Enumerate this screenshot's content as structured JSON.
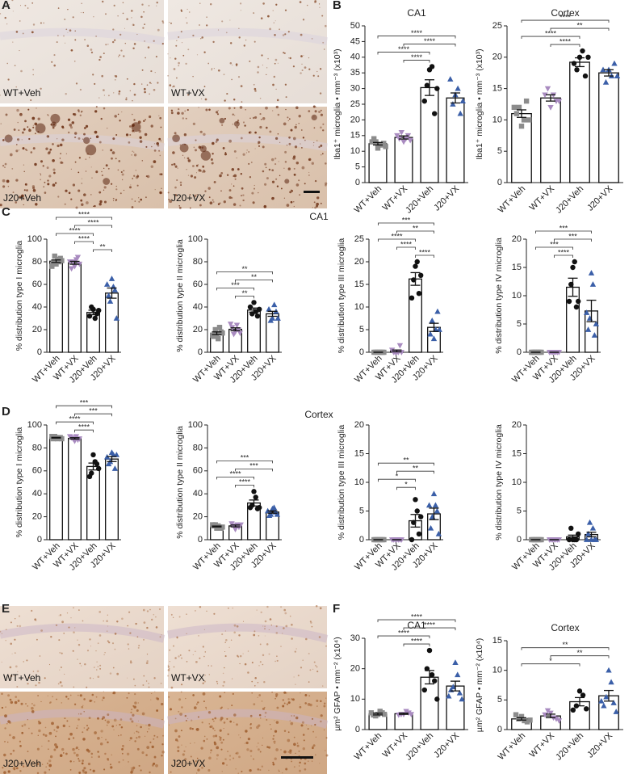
{
  "panel_labels": [
    "A",
    "B",
    "C",
    "D",
    "E",
    "F"
  ],
  "section_titles": [
    "CA1",
    "Cortex"
  ],
  "micrograph_sets": [
    {
      "labels": [
        "WT+Veh",
        "WT+VX",
        "J20+Veh",
        "J20+VX"
      ]
    },
    {
      "labels": [
        "WT+Veh",
        "WT+VX",
        "J20+Veh",
        "J20+VX"
      ]
    }
  ],
  "chart_data": [
    {
      "type": "bar",
      "title": "CA1",
      "y_label": "Iba1⁺ microglia • mm⁻³ (x10³)",
      "categories": [
        "WT+Veh",
        "WT+VX",
        "J20+Veh",
        "J20+VX"
      ],
      "values": [
        12.4,
        14.4,
        30.3,
        27.0
      ],
      "errors": [
        0.4,
        0.5,
        2.5,
        1.6
      ],
      "points": [
        [
          11,
          12,
          13,
          12,
          14,
          12.5,
          13,
          11.5
        ],
        [
          13,
          14,
          16,
          15,
          14,
          13.5,
          15
        ],
        [
          36,
          37,
          31,
          22,
          26,
          30
        ],
        [
          28,
          30,
          25,
          22,
          33,
          26
        ]
      ],
      "colors": [
        "#8c8c8c",
        "#a98bc0",
        "#111111",
        "#3b5fa8"
      ],
      "markers": [
        "square",
        "triangle-down",
        "circle",
        "triangle"
      ],
      "ylim": [
        0,
        50
      ],
      "yticks": [
        0,
        5,
        10,
        15,
        20,
        25,
        30,
        35,
        40,
        45,
        50
      ],
      "comparisons": [
        {
          "pair": [
            0,
            3
          ],
          "label": "****"
        },
        {
          "pair": [
            1,
            3
          ],
          "label": "****"
        },
        {
          "pair": [
            0,
            2
          ],
          "label": "****"
        },
        {
          "pair": [
            1,
            2
          ],
          "label": "****"
        }
      ]
    },
    {
      "type": "bar",
      "title": "Cortex",
      "y_label": "Iba1⁺ microglia • mm⁻³ (x10³)",
      "categories": [
        "WT+Veh",
        "WT+VX",
        "J20+Veh",
        "J20+VX"
      ],
      "values": [
        11.0,
        13.5,
        19.2,
        17.5
      ],
      "errors": [
        0.6,
        0.5,
        0.7,
        0.5
      ],
      "points": [
        [
          9,
          10,
          12,
          13,
          11,
          10,
          12
        ],
        [
          12,
          14,
          15,
          13,
          14,
          13
        ],
        [
          20,
          21,
          18,
          17,
          19,
          20
        ],
        [
          18,
          17,
          16,
          19,
          18,
          17
        ]
      ],
      "colors": [
        "#8c8c8c",
        "#a98bc0",
        "#111111",
        "#3b5fa8"
      ],
      "markers": [
        "square",
        "triangle-down",
        "circle",
        "triangle"
      ],
      "ylim": [
        0,
        25
      ],
      "yticks": [
        0,
        5,
        10,
        15,
        20,
        25
      ],
      "comparisons": [
        {
          "pair": [
            0,
            3
          ],
          "label": "****"
        },
        {
          "pair": [
            1,
            3
          ],
          "label": "**"
        },
        {
          "pair": [
            0,
            2
          ],
          "label": "****"
        },
        {
          "pair": [
            1,
            2
          ],
          "label": "****"
        }
      ]
    },
    {
      "type": "bar",
      "y_label": "% distribution type I microglia",
      "categories": [
        "WT+Veh",
        "WT+VX",
        "J20+Veh",
        "J20+VX"
      ],
      "values": [
        80.5,
        79.1,
        35.2,
        52.3
      ],
      "errors": [
        1.1,
        1.3,
        2.0,
        4.5
      ],
      "points": [
        [
          78,
          82,
          85,
          80,
          79,
          83,
          76,
          81
        ],
        [
          76,
          82,
          80,
          84,
          74,
          78,
          80
        ],
        [
          38,
          30,
          40,
          34,
          32,
          37
        ],
        [
          65,
          58,
          45,
          55,
          50,
          30,
          60
        ]
      ],
      "colors": [
        "#8c8c8c",
        "#a98bc0",
        "#111111",
        "#3b5fa8"
      ],
      "markers": [
        "square",
        "triangle-down",
        "circle",
        "triangle"
      ],
      "ylim": [
        0,
        100
      ],
      "yticks": [
        0,
        20,
        40,
        60,
        80,
        100
      ],
      "comparisons": [
        {
          "pair": [
            0,
            3
          ],
          "label": "****"
        },
        {
          "pair": [
            1,
            3
          ],
          "label": "****"
        },
        {
          "pair": [
            0,
            2
          ],
          "label": "****"
        },
        {
          "pair": [
            1,
            2
          ],
          "label": "****"
        },
        {
          "pair": [
            2,
            3
          ],
          "label": "**"
        }
      ]
    },
    {
      "type": "bar",
      "y_label": "% distribution type II microglia",
      "categories": [
        "WT+Veh",
        "WT+VX",
        "J20+Veh",
        "J20+VX"
      ],
      "values": [
        16.8,
        20.3,
        37.3,
        34.0
      ],
      "errors": [
        1.2,
        1.3,
        1.8,
        2.2
      ],
      "points": [
        [
          16,
          12,
          20,
          22,
          14,
          18,
          15,
          17
        ],
        [
          18,
          24,
          16,
          20,
          22,
          17,
          25
        ],
        [
          44,
          36,
          34,
          32,
          40,
          38
        ],
        [
          30,
          42,
          28,
          36,
          38,
          30
        ]
      ],
      "colors": [
        "#8c8c8c",
        "#a98bc0",
        "#111111",
        "#3b5fa8"
      ],
      "markers": [
        "square",
        "triangle-down",
        "circle",
        "triangle"
      ],
      "ylim": [
        0,
        100
      ],
      "yticks": [
        0,
        20,
        40,
        60,
        80,
        100
      ],
      "comparisons": [
        {
          "pair": [
            0,
            3
          ],
          "label": "**"
        },
        {
          "pair": [
            1,
            3
          ],
          "label": "**"
        },
        {
          "pair": [
            0,
            2
          ],
          "label": "***"
        },
        {
          "pair": [
            1,
            2
          ],
          "label": "**"
        }
      ]
    },
    {
      "type": "bar",
      "y_label": "% distribution type III microglia",
      "categories": [
        "WT+Veh",
        "WT+VX",
        "J20+Veh",
        "J20+VX"
      ],
      "values": [
        0,
        0.3,
        16.2,
        5.5
      ],
      "errors": [
        0,
        0.2,
        1.4,
        0.9
      ],
      "points": [
        [
          0,
          0,
          0,
          0,
          0,
          0,
          0,
          0
        ],
        [
          0,
          0,
          0,
          1.5,
          0,
          0,
          0.5
        ],
        [
          19,
          20,
          16,
          13,
          12,
          17
        ],
        [
          3,
          5,
          7,
          9,
          4,
          5
        ]
      ],
      "colors": [
        "#8c8c8c",
        "#a98bc0",
        "#111111",
        "#3b5fa8"
      ],
      "markers": [
        "square",
        "triangle-down",
        "circle",
        "triangle"
      ],
      "ylim": [
        0,
        25
      ],
      "yticks": [
        0,
        5,
        10,
        15,
        20,
        25
      ],
      "comparisons": [
        {
          "pair": [
            0,
            3
          ],
          "label": "***"
        },
        {
          "pair": [
            1,
            3
          ],
          "label": "**"
        },
        {
          "pair": [
            0,
            2
          ],
          "label": "****"
        },
        {
          "pair": [
            1,
            2
          ],
          "label": "****"
        },
        {
          "pair": [
            2,
            3
          ],
          "label": "****"
        }
      ]
    },
    {
      "type": "bar",
      "y_label": "% distribution type IV microglia",
      "categories": [
        "WT+Veh",
        "WT+VX",
        "J20+Veh",
        "J20+VX"
      ],
      "values": [
        0,
        0,
        11.5,
        7.3
      ],
      "errors": [
        0,
        0,
        1.6,
        1.9
      ],
      "points": [
        [
          0,
          0,
          0,
          0,
          0,
          0,
          0,
          0
        ],
        [
          0,
          0,
          0,
          0,
          0,
          0,
          0
        ],
        [
          15,
          16,
          12,
          8,
          9,
          9
        ],
        [
          14,
          12,
          6,
          3,
          4,
          5,
          7
        ]
      ],
      "colors": [
        "#8c8c8c",
        "#a98bc0",
        "#111111",
        "#3b5fa8"
      ],
      "markers": [
        "square",
        "triangle-down",
        "circle",
        "triangle"
      ],
      "ylim": [
        0,
        20
      ],
      "yticks": [
        0,
        5,
        10,
        15,
        20
      ],
      "comparisons": [
        {
          "pair": [
            0,
            3
          ],
          "label": "***"
        },
        {
          "pair": [
            1,
            3
          ],
          "label": "***"
        },
        {
          "pair": [
            0,
            2
          ],
          "label": "***"
        },
        {
          "pair": [
            1,
            2
          ],
          "label": "****"
        }
      ]
    },
    {
      "type": "bar",
      "y_label": "% distribution type I microglia",
      "categories": [
        "WT+Veh",
        "WT+VX",
        "J20+Veh",
        "J20+VX"
      ],
      "values": [
        88.9,
        88.3,
        63.8,
        70.3
      ],
      "errors": [
        0.3,
        0.6,
        3.0,
        2.2
      ],
      "points": [
        [
          89,
          88,
          90,
          89,
          88,
          89,
          90,
          88
        ],
        [
          86,
          90,
          88,
          87,
          89,
          88,
          90
        ],
        [
          74,
          68,
          58,
          66,
          55,
          62
        ],
        [
          76,
          74,
          68,
          62,
          66,
          74,
          72
        ]
      ],
      "colors": [
        "#8c8c8c",
        "#a98bc0",
        "#111111",
        "#3b5fa8"
      ],
      "markers": [
        "square",
        "triangle-down",
        "circle",
        "triangle"
      ],
      "ylim": [
        0,
        100
      ],
      "yticks": [
        0,
        20,
        40,
        60,
        80,
        100
      ],
      "comparisons": [
        {
          "pair": [
            0,
            3
          ],
          "label": "***"
        },
        {
          "pair": [
            1,
            3
          ],
          "label": "***"
        },
        {
          "pair": [
            0,
            2
          ],
          "label": "****"
        },
        {
          "pair": [
            1,
            2
          ],
          "label": "****"
        }
      ]
    },
    {
      "type": "bar",
      "y_label": "% distribution type II microglia",
      "categories": [
        "WT+Veh",
        "WT+VX",
        "J20+Veh",
        "J20+VX"
      ],
      "values": [
        11.5,
        12.0,
        32.0,
        24.1
      ],
      "errors": [
        0.4,
        0.8,
        2.6,
        1.0
      ],
      "points": [
        [
          10,
          12,
          13,
          11,
          12,
          10,
          13,
          11
        ],
        [
          9,
          13,
          12,
          11,
          14,
          13
        ],
        [
          42,
          37,
          30,
          27,
          28,
          28
        ],
        [
          27,
          28,
          22,
          24,
          21,
          22,
          25
        ]
      ],
      "colors": [
        "#8c8c8c",
        "#a98bc0",
        "#111111",
        "#3b5fa8"
      ],
      "markers": [
        "square",
        "triangle-down",
        "circle",
        "triangle"
      ],
      "ylim": [
        0,
        100
      ],
      "yticks": [
        0,
        20,
        40,
        60,
        80,
        100
      ],
      "comparisons": [
        {
          "pair": [
            0,
            3
          ],
          "label": "***"
        },
        {
          "pair": [
            1,
            3
          ],
          "label": "***"
        },
        {
          "pair": [
            0,
            2
          ],
          "label": "****"
        },
        {
          "pair": [
            1,
            2
          ],
          "label": "****"
        }
      ]
    },
    {
      "type": "bar",
      "y_label": "% distribution type III microglia",
      "categories": [
        "WT+Veh",
        "WT+VX",
        "J20+Veh",
        "J20+VX"
      ],
      "values": [
        0,
        0,
        3.3,
        4.5
      ],
      "errors": [
        0,
        0,
        1.1,
        1.0
      ],
      "points": [
        [
          0,
          0,
          0,
          0,
          0,
          0,
          0,
          0
        ],
        [
          0,
          0,
          0,
          0,
          0,
          0,
          0
        ],
        [
          7,
          5,
          3,
          1,
          0,
          4
        ],
        [
          8,
          6,
          4,
          5,
          2,
          1,
          6
        ]
      ],
      "colors": [
        "#8c8c8c",
        "#a98bc0",
        "#111111",
        "#3b5fa8"
      ],
      "markers": [
        "square",
        "triangle-down",
        "circle",
        "triangle"
      ],
      "ylim": [
        0,
        20
      ],
      "yticks": [
        0,
        5,
        10,
        15,
        20
      ],
      "comparisons": [
        {
          "pair": [
            0,
            3
          ],
          "label": "**"
        },
        {
          "pair": [
            1,
            3
          ],
          "label": "**"
        },
        {
          "pair": [
            0,
            2
          ],
          "label": "*"
        },
        {
          "pair": [
            1,
            2
          ],
          "label": "*"
        }
      ]
    },
    {
      "type": "bar",
      "y_label": "% distribution type IV microglia",
      "categories": [
        "WT+Veh",
        "WT+VX",
        "J20+Veh",
        "J20+VX"
      ],
      "values": [
        0,
        0,
        0.5,
        0.9
      ],
      "errors": [
        0,
        0,
        0.3,
        0.4
      ],
      "points": [
        [
          0,
          0,
          0,
          0,
          0,
          0,
          0,
          0
        ],
        [
          0,
          0,
          0,
          0,
          0,
          0,
          0
        ],
        [
          0,
          0,
          2,
          0,
          0,
          1
        ],
        [
          0,
          2,
          3,
          0,
          1,
          0,
          0
        ]
      ],
      "colors": [
        "#8c8c8c",
        "#a98bc0",
        "#111111",
        "#3b5fa8"
      ],
      "markers": [
        "square",
        "triangle-down",
        "circle",
        "triangle"
      ],
      "ylim": [
        0,
        20
      ],
      "yticks": [
        0,
        5,
        10,
        15,
        20
      ],
      "comparisons": []
    },
    {
      "type": "bar",
      "title": "CA1",
      "y_label": "µm² GFAP • mm⁻² (x10⁴)",
      "categories": [
        "WT+Veh",
        "WT+VX",
        "J20+Veh",
        "J20+VX"
      ],
      "values": [
        5.1,
        5.2,
        17.2,
        14.3
      ],
      "errors": [
        0.3,
        0.2,
        2.2,
        1.6
      ],
      "points": [
        [
          5,
          6,
          4.5,
          5.5,
          4.8,
          5,
          5.5
        ],
        [
          5,
          6,
          5,
          5.5,
          4.8,
          5
        ],
        [
          26,
          18,
          20,
          16,
          13,
          10
        ],
        [
          22,
          18,
          14,
          12,
          13,
          10,
          11
        ]
      ],
      "colors": [
        "#8c8c8c",
        "#a98bc0",
        "#111111",
        "#3b5fa8"
      ],
      "markers": [
        "square",
        "triangle-down",
        "circle",
        "triangle"
      ],
      "ylim": [
        0,
        30
      ],
      "yticks": [
        0,
        10,
        20,
        30
      ],
      "comparisons": [
        {
          "pair": [
            0,
            3
          ],
          "label": "****"
        },
        {
          "pair": [
            1,
            3
          ],
          "label": "****"
        },
        {
          "pair": [
            0,
            2
          ],
          "label": "****"
        },
        {
          "pair": [
            1,
            2
          ],
          "label": "****"
        }
      ]
    },
    {
      "type": "bar",
      "title": "Cortex",
      "y_label": "µm² GFAP • mm⁻² (x10⁴)",
      "categories": [
        "WT+Veh",
        "WT+VX",
        "J20+Veh",
        "J20+VX"
      ],
      "values": [
        1.8,
        2.3,
        4.7,
        5.7
      ],
      "errors": [
        0.2,
        0.3,
        0.7,
        0.9
      ],
      "points": [
        [
          2.2,
          1.5,
          1.8,
          1.3,
          2.5,
          1.6
        ],
        [
          2.8,
          2,
          3.2,
          1.8,
          2.5,
          1.5
        ],
        [
          6.5,
          5.8,
          4,
          3.5,
          3.3
        ],
        [
          10,
          8,
          5.5,
          4.5,
          4,
          3,
          4.8
        ]
      ],
      "colors": [
        "#8c8c8c",
        "#a98bc0",
        "#111111",
        "#3b5fa8"
      ],
      "markers": [
        "square",
        "triangle-down",
        "circle",
        "triangle"
      ],
      "ylim": [
        0,
        15
      ],
      "yticks": [
        0,
        5,
        10,
        15
      ],
      "comparisons": [
        {
          "pair": [
            0,
            3
          ],
          "label": "**"
        },
        {
          "pair": [
            1,
            3
          ],
          "label": "**"
        },
        {
          "pair": [
            0,
            2
          ],
          "label": "*"
        }
      ]
    }
  ]
}
